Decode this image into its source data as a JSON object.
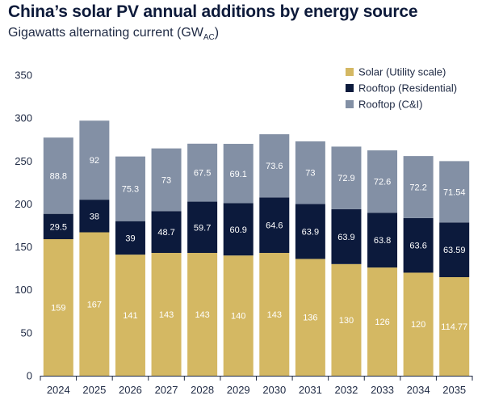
{
  "title": "China’s solar PV annual additions by energy source",
  "subtitle_main": "Gigawatts alternating current (GW",
  "subtitle_sub": "AC",
  "subtitle_end": ")",
  "chart_data": {
    "type": "bar",
    "stacked": true,
    "categories": [
      "2024",
      "2025",
      "2026",
      "2027",
      "2028",
      "2029",
      "2030",
      "2031",
      "2032",
      "2033",
      "2034",
      "2035"
    ],
    "series": [
      {
        "name": "Solar (Utility scale)",
        "color": "#d4b863",
        "values": [
          159,
          167,
          141,
          143,
          143,
          140,
          143,
          136,
          130,
          126,
          120,
          114.77
        ],
        "labels": [
          "159",
          "167",
          "141",
          "143",
          "143",
          "140",
          "143",
          "136",
          "130",
          "126",
          "120",
          "114.77"
        ]
      },
      {
        "name": "Rooftop (Residential)",
        "color": "#0c1a3c",
        "values": [
          29.5,
          38,
          39,
          48.7,
          59.7,
          60.9,
          64.6,
          63.9,
          63.9,
          63.8,
          63.6,
          63.59
        ],
        "labels": [
          "29.5",
          "38",
          "39",
          "48.7",
          "59.7",
          "60.9",
          "64.6",
          "63.9",
          "63.9",
          "63.8",
          "63.6",
          "63.59"
        ]
      },
      {
        "name": "Rooftop (C&I)",
        "color": "#8390a5",
        "values": [
          88.8,
          92,
          75.3,
          73,
          67.5,
          69.1,
          73.6,
          73,
          72.9,
          72.6,
          72.2,
          71.54
        ],
        "labels": [
          "88.8",
          "92",
          "75.3",
          "73",
          "67.5",
          "69.1",
          "73.6",
          "73",
          "72.9",
          "72.6",
          "72.2",
          "71.54"
        ]
      }
    ],
    "ylim": [
      0,
      350
    ],
    "yticks": [
      0,
      50,
      100,
      150,
      200,
      250,
      300,
      350
    ],
    "ytick_labels": [
      "0",
      "50",
      "100",
      "150",
      "200",
      "250",
      "300",
      "350"
    ],
    "grid": false,
    "legend_position": "top-right"
  }
}
